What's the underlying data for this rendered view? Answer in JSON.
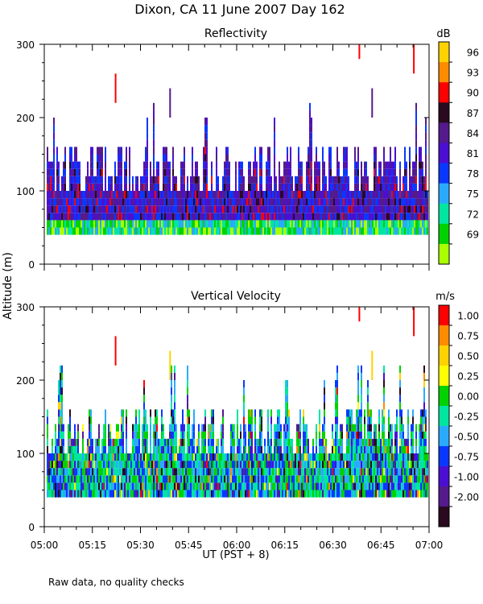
{
  "figure": {
    "title": "Dixon, CA 11 June 2007  Day 162",
    "ylabel": "Altitude  (m)",
    "xlabel": "UT  (PST + 8)",
    "footnote": "Raw data, no quality checks"
  },
  "chart_data": [
    {
      "type": "heatmap",
      "title": "Reflectivity",
      "colorbar_unit": "dB",
      "colorbar_ticks": [
        "96",
        "93",
        "90",
        "87",
        "84",
        "81",
        "78",
        "75",
        "72",
        "69"
      ],
      "colorbar_colors": [
        "#ffd200",
        "#ff8c00",
        "#ff0000",
        "#2a0a1e",
        "#551a8b",
        "#4b0fd2",
        "#0a37ff",
        "#2aaaff",
        "#00e6a0",
        "#00d200",
        "#aaff00"
      ],
      "x_ticks": [
        "05:00",
        "05:15",
        "05:30",
        "05:45",
        "06:00",
        "06:15",
        "06:30",
        "06:45",
        "07:00"
      ],
      "x_range_minutes": [
        0,
        120
      ],
      "y_ticks": [
        0,
        100,
        200,
        300
      ],
      "ylim": [
        0,
        300
      ],
      "echo_base_m": 40,
      "typical_top_m": [
        100,
        180
      ],
      "max_top_m": 220,
      "isolated_echoes": [
        {
          "time": "05:22",
          "bottom_m": 220,
          "top_m": 260
        },
        {
          "time": "05:39",
          "bottom_m": 200,
          "top_m": 240
        },
        {
          "time": "06:38",
          "bottom_m": 280,
          "top_m": 300
        },
        {
          "time": "06:42",
          "bottom_m": 200,
          "top_m": 240
        },
        {
          "time": "06:55",
          "bottom_m": 260,
          "top_m": 300
        }
      ]
    },
    {
      "type": "heatmap",
      "title": "Vertical Velocity",
      "colorbar_unit": "m/s",
      "colorbar_ticks": [
        "1.00",
        "0.75",
        "0.50",
        "0.25",
        "0.00",
        "-0.25",
        "-0.50",
        "-0.75",
        "-1.00",
        "-2.00"
      ],
      "colorbar_colors": [
        "#ff0000",
        "#ff8c00",
        "#ffd200",
        "#ffff00",
        "#00d200",
        "#00e6a0",
        "#2aaaff",
        "#0a37ff",
        "#4b0fd2",
        "#551a8b",
        "#2a0a1e"
      ],
      "x_ticks": [
        "05:00",
        "05:15",
        "05:30",
        "05:45",
        "06:00",
        "06:15",
        "06:30",
        "06:45",
        "07:00"
      ],
      "x_range_minutes": [
        0,
        120
      ],
      "y_ticks": [
        0,
        100,
        200,
        300
      ],
      "ylim": [
        0,
        300
      ],
      "echo_base_m": 40,
      "typical_top_m": [
        100,
        180
      ],
      "max_top_m": 220,
      "isolated_echoes": [
        {
          "time": "05:22",
          "bottom_m": 220,
          "top_m": 260
        },
        {
          "time": "05:39",
          "bottom_m": 200,
          "top_m": 240
        },
        {
          "time": "06:38",
          "bottom_m": 280,
          "top_m": 300
        },
        {
          "time": "06:42",
          "bottom_m": 200,
          "top_m": 240
        },
        {
          "time": "06:55",
          "bottom_m": 260,
          "top_m": 300
        }
      ]
    }
  ]
}
